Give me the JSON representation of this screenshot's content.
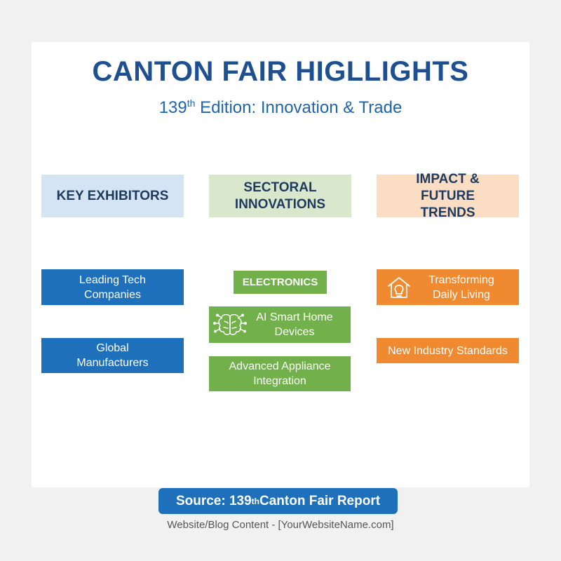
{
  "header": {
    "title": "CANTON FAIR HIGLLIGHTS",
    "subtitle_prefix": "139",
    "subtitle_sup": "th",
    "subtitle_rest": " Edition: Innovation & Trade"
  },
  "columns": [
    {
      "heading": "KEY EXHIBITORS",
      "items": [
        "Leading Tech Companies",
        "Global Manufacturers"
      ]
    },
    {
      "heading": "SECTORAL INNOVATIONS",
      "items": [
        "ELECTRONICS",
        "AI Smart Home Devices",
        "Advanced Appliance Integration"
      ]
    },
    {
      "heading": "IMPACT & FUTURE TRENDS",
      "items": [
        "Transforming Daily Living",
        "New Industry Standards"
      ]
    }
  ],
  "icons": {
    "ai_smart_home": "brain-circuit-icon",
    "transforming_daily_living": "house-bulb-icon"
  },
  "source": {
    "prefix": "Source: 139",
    "sup": "th",
    "rest": " Canton Fair Report"
  },
  "footer": "Website/Blog Content - [YourWebsiteName.com]",
  "colors": {
    "title": "#1d4f91",
    "blue": "#1f70ba",
    "green": "#71b04a",
    "orange": "#ef8a31",
    "blue_header": "#d4e4f3",
    "green_header": "#d9e8cd",
    "orange_header": "#fbddc4"
  }
}
